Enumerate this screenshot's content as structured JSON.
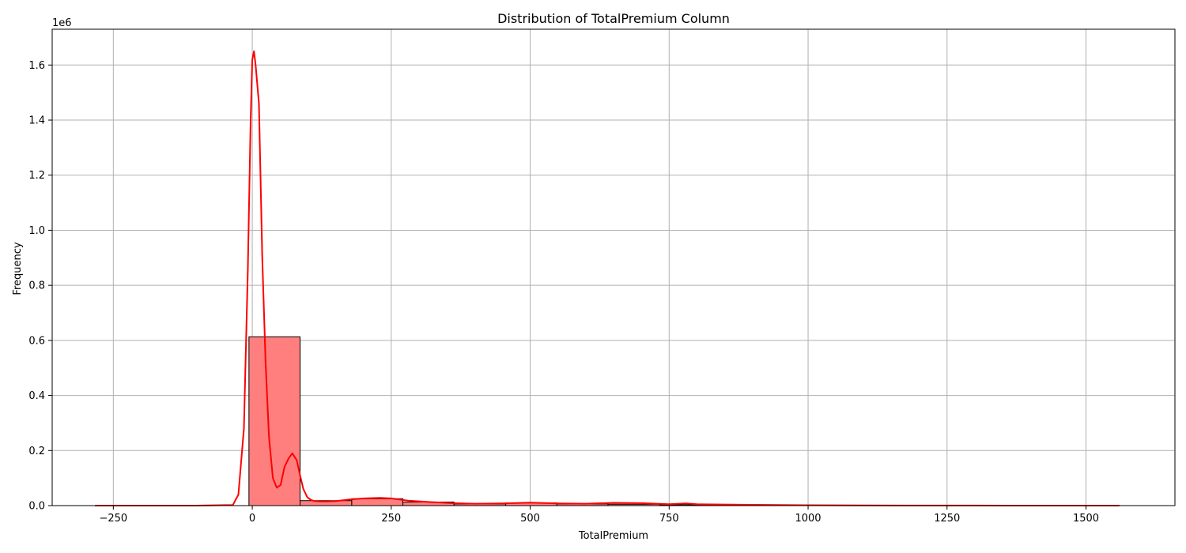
{
  "chart_data": {
    "type": "bar",
    "title": "Distribution of TotalPremium Column",
    "xlabel": "TotalPremium",
    "ylabel": "Frequency",
    "y_offset_label": "1e6",
    "y_scale_factor": 1000000,
    "xlim": [
      -360,
      1660
    ],
    "ylim": [
      0,
      1730000
    ],
    "x_ticks": [
      -250,
      0,
      250,
      500,
      750,
      1000,
      1250,
      1500
    ],
    "y_ticks": [
      0,
      200000,
      400000,
      600000,
      800000,
      1000000,
      1200000,
      1400000,
      1600000
    ],
    "y_tick_labels": [
      "0.0",
      "0.2",
      "0.4",
      "0.6",
      "0.8",
      "1.0",
      "1.2",
      "1.4",
      "1.6"
    ],
    "grid": true,
    "colors": {
      "bar_fill": "#ff7f7f",
      "bar_edge": "#000000",
      "kde_line": "#ff0000"
    },
    "bins": [
      {
        "x0": -283,
        "x1": -191,
        "count": 0
      },
      {
        "x0": -191,
        "x1": -98,
        "count": 0
      },
      {
        "x0": -98,
        "x1": -6,
        "count": 0
      },
      {
        "x0": -6,
        "x1": 86,
        "count": 613000
      },
      {
        "x0": 86,
        "x1": 179,
        "count": 18000
      },
      {
        "x0": 179,
        "x1": 271,
        "count": 25000
      },
      {
        "x0": 271,
        "x1": 363,
        "count": 13000
      },
      {
        "x0": 363,
        "x1": 456,
        "count": 6000
      },
      {
        "x0": 456,
        "x1": 548,
        "count": 10000
      },
      {
        "x0": 548,
        "x1": 640,
        "count": 6000
      },
      {
        "x0": 640,
        "x1": 733,
        "count": 5000
      },
      {
        "x0": 733,
        "x1": 825,
        "count": 3000
      },
      {
        "x0": 825,
        "x1": 917,
        "count": 2000
      },
      {
        "x0": 917,
        "x1": 1010,
        "count": 1000
      },
      {
        "x0": 1010,
        "x1": 1102,
        "count": 500
      },
      {
        "x0": 1102,
        "x1": 1194,
        "count": 300
      },
      {
        "x0": 1194,
        "x1": 1287,
        "count": 200
      },
      {
        "x0": 1287,
        "x1": 1379,
        "count": 100
      },
      {
        "x0": 1379,
        "x1": 1471,
        "count": 50
      },
      {
        "x0": 1471,
        "x1": 1564,
        "count": 30
      }
    ],
    "kde": {
      "x": [
        -283,
        -100,
        -35,
        -25,
        -15,
        -8,
        -3,
        0,
        3,
        6,
        12,
        18,
        24,
        30,
        37,
        44,
        51,
        58,
        65,
        72,
        80,
        86,
        92,
        99,
        106,
        113,
        122,
        135,
        150,
        175,
        200,
        230,
        250,
        280,
        320,
        360,
        400,
        450,
        500,
        550,
        600,
        650,
        700,
        750,
        780,
        800,
        900,
        1000,
        1100,
        1200,
        1300,
        1400,
        1500,
        1560
      ],
      "y": [
        0,
        0,
        2000,
        40000,
        280000,
        850000,
        1400000,
        1620000,
        1650000,
        1600000,
        1460000,
        900000,
        520000,
        250000,
        100000,
        65000,
        75000,
        140000,
        170000,
        190000,
        165000,
        110000,
        60000,
        30000,
        20000,
        16000,
        15000,
        15000,
        16000,
        22000,
        26000,
        28000,
        26000,
        18000,
        13000,
        9000,
        7000,
        8000,
        11000,
        8000,
        7000,
        10000,
        9000,
        5000,
        8000,
        5000,
        3000,
        1500,
        700,
        300,
        150,
        80,
        40,
        0
      ]
    }
  }
}
